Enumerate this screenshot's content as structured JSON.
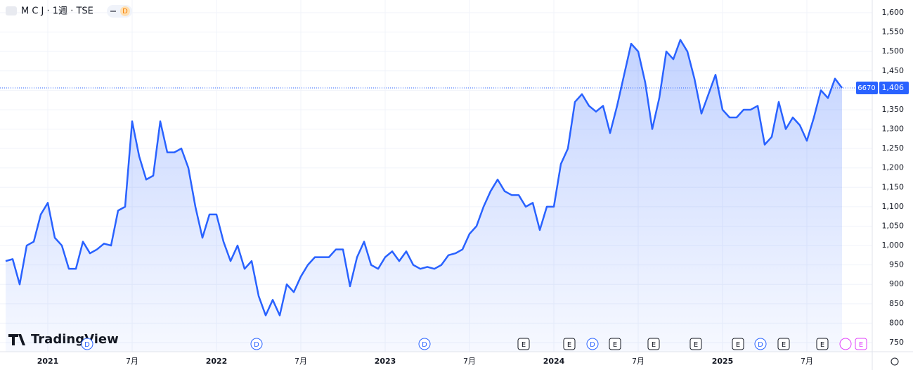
{
  "header": {
    "symbol": "M C J · 1週 · TSE",
    "badge": "D"
  },
  "logo": "TradingView",
  "chart_data": {
    "type": "area",
    "categories": [
      null,
      null,
      null,
      null,
      null,
      null,
      "2021",
      null,
      null,
      null,
      null,
      null,
      null,
      null,
      null,
      null,
      null,
      null,
      "7月",
      null,
      null,
      null,
      null,
      null,
      null,
      null,
      null,
      null,
      null,
      null,
      "2022",
      null,
      null,
      null,
      null,
      null,
      null,
      null,
      null,
      null,
      null,
      null,
      "7月",
      null,
      null,
      null,
      null,
      null,
      null,
      null,
      null,
      null,
      null,
      null,
      "2023",
      null,
      null,
      null,
      null,
      null,
      null,
      null,
      null,
      null,
      null,
      null,
      "7月",
      null,
      null,
      null,
      null,
      null,
      null,
      null,
      null,
      null,
      null,
      null,
      "2024",
      null,
      null,
      null,
      null,
      null,
      null,
      null,
      null,
      null,
      null,
      null,
      "7月",
      null,
      null,
      null,
      null,
      null,
      null,
      null,
      null,
      null,
      null,
      null,
      "2025",
      null,
      null,
      null,
      null,
      null,
      null,
      null,
      null,
      null,
      null,
      null,
      "7月",
      null,
      null,
      null,
      null,
      null
    ],
    "series": [
      {
        "color": "#2962ff",
        "values": [
          960,
          965,
          900,
          1000,
          1010,
          1080,
          1110,
          1020,
          1000,
          940,
          940,
          1010,
          980,
          990,
          1005,
          1000,
          1090,
          1100,
          1320,
          1230,
          1170,
          1180,
          1320,
          1240,
          1240,
          1250,
          1200,
          1100,
          1020,
          1080,
          1080,
          1010,
          960,
          1000,
          940,
          960,
          870,
          820,
          860,
          820,
          900,
          880,
          920,
          950,
          970,
          970,
          970,
          990,
          990,
          895,
          970,
          1010,
          950,
          940,
          970,
          985,
          960,
          985,
          950,
          940,
          945,
          940,
          950,
          975,
          980,
          990,
          1030,
          1050,
          1100,
          1140,
          1170,
          1140,
          1130,
          1130,
          1100,
          1110,
          1040,
          1100,
          1100,
          1210,
          1250,
          1370,
          1390,
          1360,
          1345,
          1360,
          1290,
          1360,
          1440,
          1520,
          1500,
          1420,
          1300,
          1380,
          1500,
          1480,
          1530,
          1500,
          1430,
          1340,
          1390,
          1440,
          1350,
          1330,
          1330,
          1350,
          1350,
          1360,
          1260,
          1280,
          1370,
          1300,
          1330,
          1310,
          1270,
          1330,
          1400,
          1380,
          1430,
          1406
        ]
      }
    ],
    "ylim": [
      750,
      1600
    ],
    "yticks": [
      750,
      800,
      850,
      900,
      950,
      {
        "value": 1000,
        "label": "1,000"
      },
      {
        "value": 1050,
        "label": "1,050"
      },
      {
        "value": 1100,
        "label": "1,100"
      },
      {
        "value": 1150,
        "label": "1,150"
      },
      {
        "value": 1200,
        "label": "1,200"
      },
      {
        "value": 1250,
        "label": "1,250"
      },
      {
        "value": 1300,
        "label": "1,300"
      },
      {
        "value": 1350,
        "label": "1,350"
      },
      {
        "value": 1400,
        "label": "1,400"
      },
      {
        "value": 1450,
        "label": "1,450"
      },
      {
        "value": 1500,
        "label": "1,500"
      },
      {
        "value": 1550,
        "label": "1,550"
      },
      {
        "value": 1600,
        "label": "1,600"
      }
    ],
    "last_price": {
      "value": 1406,
      "label": "1,406"
    },
    "symbol_code": "6670",
    "events": [
      "D",
      "D",
      "D",
      "E",
      "E",
      "D",
      "E",
      "E",
      "E",
      "E",
      "D",
      "E",
      "E",
      "E"
    ],
    "grid": true
  }
}
